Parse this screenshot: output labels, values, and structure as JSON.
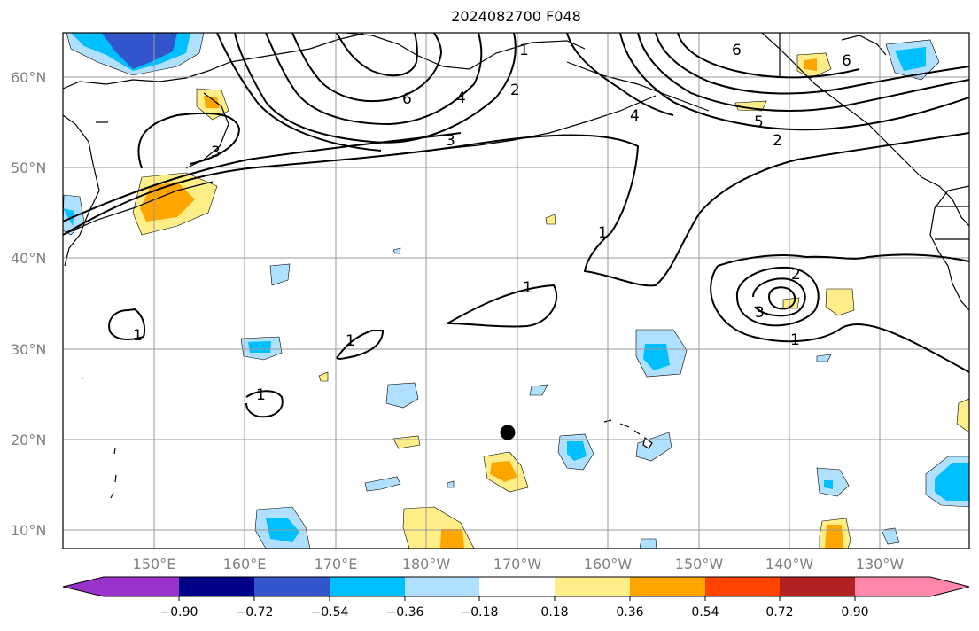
{
  "title": "2024082700 F048",
  "map": {
    "lat_labels": [
      "60°N",
      "50°N",
      "40°N",
      "30°N",
      "20°N",
      "10°N"
    ],
    "lon_labels": [
      "150°E",
      "160°E",
      "170°E",
      "180°W",
      "170°W",
      "160°W",
      "150°W",
      "140°W",
      "130°W"
    ],
    "contour_labels": [
      "1",
      "6",
      "4",
      "2",
      "3",
      "3",
      "4",
      "6",
      "5",
      "2",
      "6",
      "1",
      "1",
      "2",
      "3",
      "1",
      "1",
      "1",
      "1"
    ],
    "marker": "storm-center-dot"
  },
  "colorbar": {
    "tick_labels": [
      "−0.90",
      "−0.72",
      "−0.54",
      "−0.36",
      "−0.18",
      "0.18",
      "0.36",
      "0.54",
      "0.72",
      "0.90"
    ],
    "colors": [
      "#9933cc",
      "#000088",
      "#3355cc",
      "#00bfff",
      "#b0e0ff",
      "#ffffff",
      "#ffee88",
      "#ffa500",
      "#ff4400",
      "#b22222",
      "#ff88aa"
    ]
  },
  "colors": {
    "frame": "#000000",
    "grid": "#999999",
    "contour": "#000000",
    "axis_label": "#808080"
  }
}
